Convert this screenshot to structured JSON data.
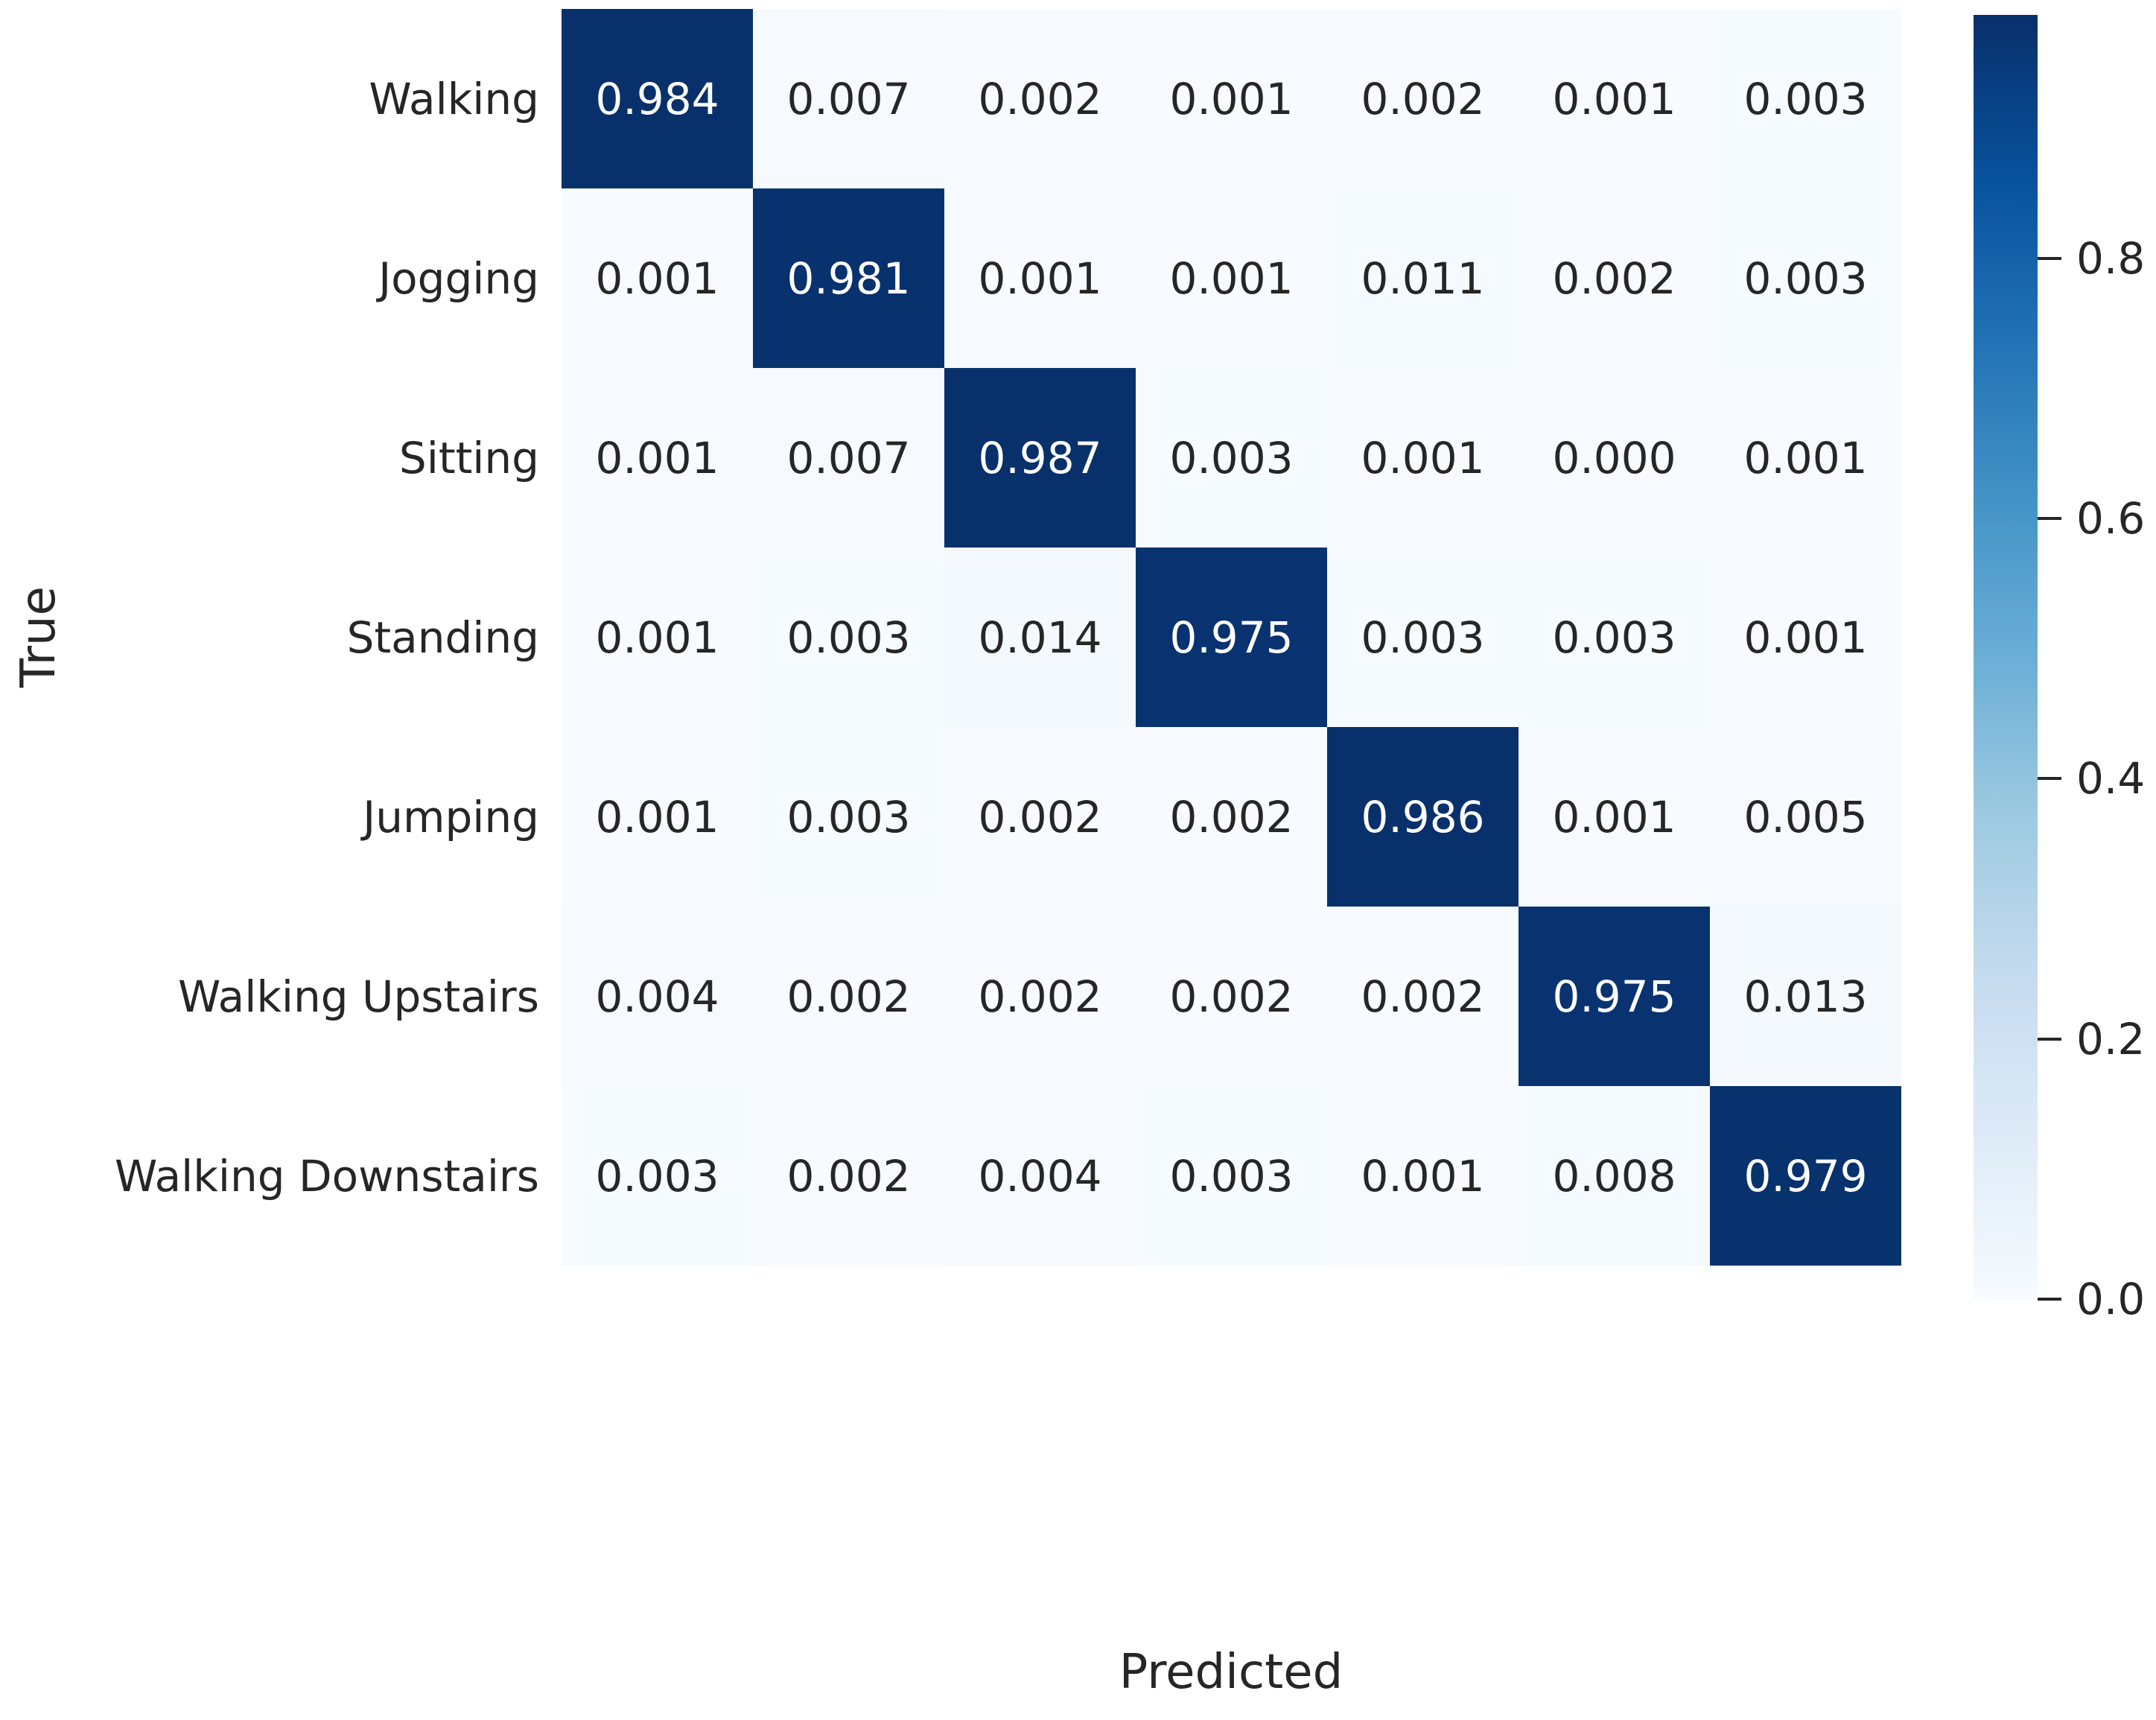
{
  "chart_data": {
    "type": "heatmap",
    "title": "",
    "xlabel": "Predicted",
    "ylabel": "True",
    "categories": [
      "Walking",
      "Jogging",
      "Sitting",
      "Standing",
      "Jumping",
      "Walking Upstairs",
      "Walking Downstairs"
    ],
    "matrix": [
      [
        0.984,
        0.007,
        0.002,
        0.001,
        0.002,
        0.001,
        0.003
      ],
      [
        0.001,
        0.981,
        0.001,
        0.001,
        0.011,
        0.002,
        0.003
      ],
      [
        0.001,
        0.007,
        0.987,
        0.003,
        0.001,
        0.0,
        0.001
      ],
      [
        0.001,
        0.003,
        0.014,
        0.975,
        0.003,
        0.003,
        0.001
      ],
      [
        0.001,
        0.003,
        0.002,
        0.002,
        0.986,
        0.001,
        0.005
      ],
      [
        0.004,
        0.002,
        0.002,
        0.002,
        0.002,
        0.975,
        0.013
      ],
      [
        0.003,
        0.002,
        0.004,
        0.003,
        0.001,
        0.008,
        0.979
      ]
    ],
    "value_decimals": 3,
    "vmin": 0.0,
    "vmax": 0.987,
    "colormap": "Blues",
    "colormap_low": "#f7fbff",
    "colormap_high": "#08306b",
    "annotation_dark_color": "#262626",
    "annotation_light_color": "#ffffff",
    "colorbar": {
      "position": "right",
      "tick_labels": [
        "0.8",
        "0.6",
        "0.4",
        "0.2",
        "0.0"
      ],
      "tick_values": [
        0.8,
        0.6,
        0.4,
        0.2,
        0.0
      ]
    },
    "grid": false,
    "x_tick_rotation": 45
  }
}
